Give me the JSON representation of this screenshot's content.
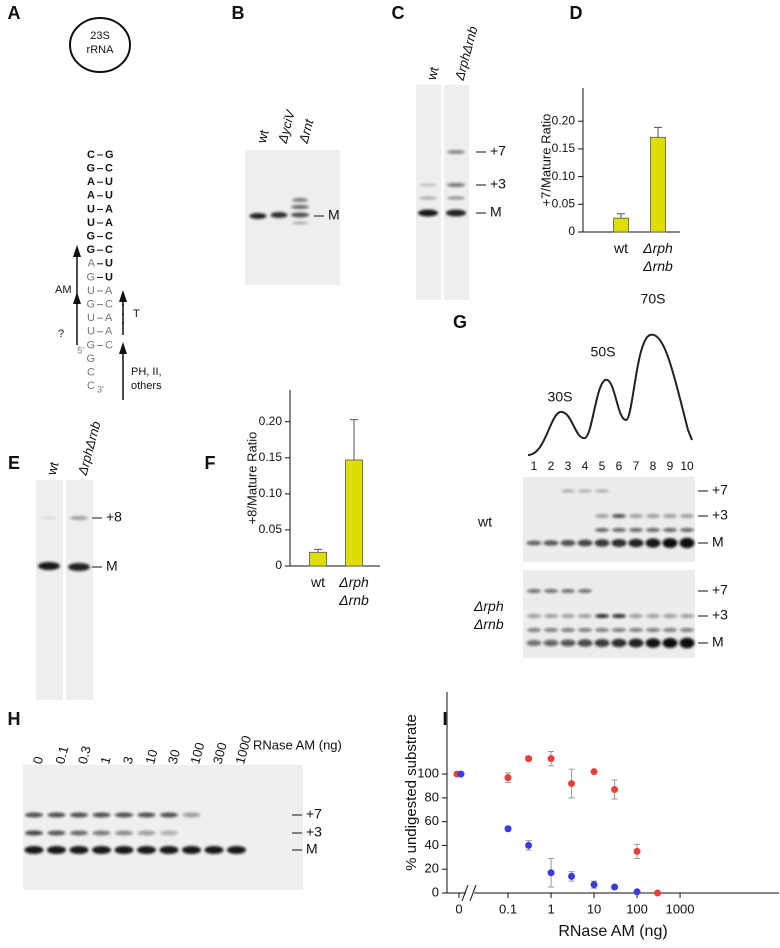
{
  "panel_labels": [
    "A",
    "B",
    "C",
    "D",
    "E",
    "F",
    "G",
    "H",
    "I"
  ],
  "diagram": {
    "loop": "23S rRNA",
    "pairs": [
      [
        "C",
        "G"
      ],
      [
        "G",
        "C"
      ],
      [
        "A",
        "U"
      ],
      [
        "A",
        "U"
      ],
      [
        "U",
        "A"
      ],
      [
        "U",
        "A"
      ],
      [
        "G",
        "C"
      ],
      [
        "G",
        "C"
      ],
      [
        "A",
        "U"
      ],
      [
        "G",
        "U"
      ],
      [
        "U",
        "A"
      ],
      [
        "G",
        "C"
      ],
      [
        "U",
        "A"
      ],
      [
        "U",
        "A"
      ],
      [
        "G",
        "C"
      ]
    ],
    "tail": [
      "G",
      "C",
      "C"
    ],
    "five_prime": "5'",
    "three_prime": "3'",
    "arrows": [
      "AM",
      "?",
      "T",
      "PH, II, others"
    ]
  },
  "gels": {
    "B": {
      "lanes": [
        "wt",
        "ΔyciV",
        "Δrnt"
      ],
      "bands": [
        "M"
      ]
    },
    "C": {
      "lanes": [
        "wt",
        "ΔrphΔrnb"
      ],
      "bands": [
        "+7",
        "+3",
        "M"
      ]
    },
    "E": {
      "lanes": [
        "wt",
        "ΔrphΔrnb"
      ],
      "bands": [
        "+8",
        "M"
      ]
    },
    "G": {
      "peaks": [
        "30S",
        "50S",
        "70S"
      ],
      "fractions": [
        "1",
        "2",
        "3",
        "4",
        "5",
        "6",
        "7",
        "8",
        "9",
        "10"
      ],
      "rows": [
        "wt",
        "Δrph Δrnb"
      ],
      "bands": [
        "+7",
        "+3",
        "M"
      ]
    },
    "H": {
      "lanes": [
        "0",
        "0.1",
        "0.3",
        "1",
        "3",
        "10",
        "30",
        "100",
        "300",
        "1000"
      ],
      "lane_title": "RNase AM (ng)",
      "bands": [
        "+7",
        "+3",
        "M"
      ]
    }
  },
  "chart_data": [
    {
      "type": "bar",
      "ylabel": "+7/Mature Ratio",
      "categories": [
        "wt",
        "Δrph Δrnb"
      ],
      "values": [
        0.025,
        0.171
      ],
      "errors": [
        0.008,
        0.018
      ],
      "color": "#dede00",
      "ylim": [
        0,
        0.26
      ],
      "yticks": [
        0,
        0.05,
        {
          "value": 0.1,
          "label": "0.10"
        },
        0.15,
        {
          "value": 0.2,
          "label": "0.20"
        }
      ]
    },
    {
      "type": "bar",
      "ylabel": "+8/Mature Ratio",
      "categories": [
        "wt",
        "Δrph Δrnb"
      ],
      "values": [
        0.019,
        0.147
      ],
      "errors": [
        0.004,
        0.056
      ],
      "color": "#dede00",
      "ylim": [
        0,
        0.244
      ],
      "yticks": [
        0,
        0.05,
        {
          "value": 0.1,
          "label": "0.10"
        },
        0.15,
        {
          "value": 0.2,
          "label": "0.20"
        }
      ]
    },
    {
      "type": "scatter",
      "xlabel": "RNase AM (ng)",
      "ylabel": "% undigested substrate",
      "xscale": "log",
      "axis_break": true,
      "x": [
        0,
        0.1,
        0.3,
        1,
        3,
        10,
        30,
        100,
        300
      ],
      "series": [
        {
          "color": "#e8403a",
          "values": [
            100,
            97,
            113,
            113,
            92,
            102,
            87,
            35,
            0
          ],
          "errors": [
            0,
            4,
            2,
            6,
            12,
            0,
            8,
            6,
            0
          ]
        },
        {
          "color": "#3a3ae0",
          "values": [
            100,
            54,
            40,
            17,
            14,
            7,
            5,
            1,
            null
          ],
          "errors": [
            0,
            2,
            4,
            12,
            4,
            3,
            0,
            0,
            null
          ]
        }
      ],
      "xlim": [
        0.02,
        200000
      ],
      "ylim": [
        0,
        169
      ],
      "xticks": [
        0,
        0.1,
        1,
        10,
        100,
        1000
      ],
      "yticks": [
        0,
        20,
        40,
        60,
        80,
        100
      ]
    }
  ]
}
